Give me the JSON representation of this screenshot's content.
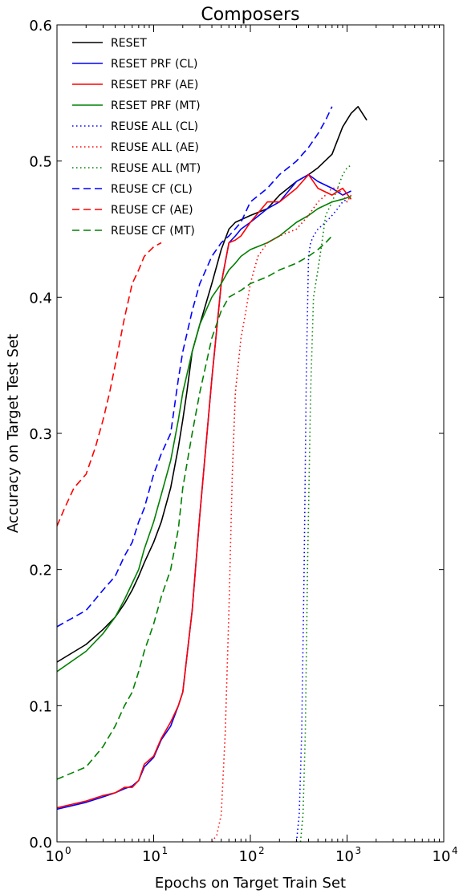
{
  "chart_data": {
    "type": "line",
    "title": "Composers",
    "xlabel": "Epochs on Target Train Set",
    "ylabel": "Accuracy on Target Test Set",
    "x_scale": "log",
    "xlim": [
      1,
      10000
    ],
    "ylim": [
      0.0,
      0.6
    ],
    "grid": false,
    "legend_position": "top-left",
    "x_ticks": [
      {
        "value": 1,
        "label": "10",
        "exp": "0"
      },
      {
        "value": 10,
        "label": "10",
        "exp": "1"
      },
      {
        "value": 100,
        "label": "10",
        "exp": "2"
      },
      {
        "value": 1000,
        "label": "10",
        "exp": "3"
      },
      {
        "value": 10000,
        "label": "10",
        "exp": "4"
      }
    ],
    "y_ticks": [
      {
        "value": 0.0,
        "label": "0.0"
      },
      {
        "value": 0.1,
        "label": "0.1"
      },
      {
        "value": 0.2,
        "label": "0.2"
      },
      {
        "value": 0.3,
        "label": "0.3"
      },
      {
        "value": 0.4,
        "label": "0.4"
      },
      {
        "value": 0.5,
        "label": "0.5"
      },
      {
        "value": 0.6,
        "label": "0.6"
      }
    ],
    "series": [
      {
        "name": "RESET",
        "color": "#000000",
        "style": "solid",
        "x": [
          1,
          2,
          3,
          4,
          5,
          6,
          7,
          8,
          10,
          12,
          15,
          18,
          20,
          22,
          25,
          30,
          40,
          50,
          60,
          70,
          100,
          150,
          200,
          300,
          400,
          500,
          700,
          900,
          1100,
          1300,
          1600
        ],
        "y": [
          0.132,
          0.145,
          0.156,
          0.165,
          0.175,
          0.185,
          0.195,
          0.205,
          0.22,
          0.235,
          0.26,
          0.29,
          0.31,
          0.33,
          0.36,
          0.38,
          0.41,
          0.435,
          0.45,
          0.455,
          0.46,
          0.465,
          0.475,
          0.485,
          0.49,
          0.495,
          0.505,
          0.525,
          0.535,
          0.54,
          0.53
        ]
      },
      {
        "name": "RESET PRF (CL)",
        "color": "#0000ff",
        "style": "solid",
        "x": [
          1,
          2,
          3,
          4,
          5,
          6,
          7,
          8,
          10,
          12,
          15,
          18,
          20,
          25,
          30,
          40,
          50,
          60,
          70,
          80,
          100,
          150,
          200,
          300,
          400,
          500,
          700,
          900,
          1100
        ],
        "y": [
          0.024,
          0.029,
          0.033,
          0.036,
          0.039,
          0.041,
          0.045,
          0.055,
          0.062,
          0.075,
          0.085,
          0.1,
          0.11,
          0.17,
          0.24,
          0.34,
          0.41,
          0.44,
          0.445,
          0.45,
          0.455,
          0.465,
          0.47,
          0.485,
          0.49,
          0.485,
          0.48,
          0.475,
          0.478
        ]
      },
      {
        "name": "RESET PRF (AE)",
        "color": "#ff0000",
        "style": "solid",
        "x": [
          1,
          2,
          3,
          4,
          5,
          6,
          7,
          8,
          10,
          12,
          15,
          18,
          20,
          25,
          30,
          40,
          50,
          60,
          70,
          80,
          100,
          150,
          200,
          300,
          400,
          500,
          700,
          900,
          1100
        ],
        "y": [
          0.025,
          0.03,
          0.034,
          0.036,
          0.04,
          0.04,
          0.045,
          0.057,
          0.063,
          0.076,
          0.088,
          0.1,
          0.11,
          0.17,
          0.24,
          0.34,
          0.41,
          0.44,
          0.442,
          0.445,
          0.455,
          0.47,
          0.47,
          0.48,
          0.49,
          0.48,
          0.475,
          0.48,
          0.472
        ]
      },
      {
        "name": "RESET PRF (MT)",
        "color": "#008000",
        "style": "solid",
        "x": [
          1,
          2,
          3,
          4,
          5,
          6,
          7,
          8,
          10,
          12,
          15,
          18,
          20,
          25,
          30,
          40,
          50,
          60,
          70,
          80,
          100,
          150,
          200,
          300,
          400,
          500,
          700,
          900,
          1100
        ],
        "y": [
          0.125,
          0.14,
          0.153,
          0.165,
          0.178,
          0.19,
          0.2,
          0.215,
          0.235,
          0.255,
          0.28,
          0.31,
          0.33,
          0.36,
          0.38,
          0.4,
          0.41,
          0.42,
          0.425,
          0.43,
          0.435,
          0.44,
          0.445,
          0.455,
          0.46,
          0.465,
          0.47,
          0.472,
          0.474
        ]
      },
      {
        "name": "REUSE ALL (CL)",
        "color": "#0000ff",
        "style": "dotted",
        "x": [
          300,
          320,
          340,
          360,
          380,
          400,
          420,
          450,
          500,
          600,
          700,
          800,
          900,
          1000
        ],
        "y": [
          0.0,
          0.02,
          0.08,
          0.2,
          0.35,
          0.43,
          0.44,
          0.445,
          0.45,
          0.455,
          0.46,
          0.465,
          0.47,
          0.472
        ]
      },
      {
        "name": "REUSE ALL (AE)",
        "color": "#ff0000",
        "style": "dotted",
        "x": [
          40,
          45,
          50,
          55,
          60,
          65,
          70,
          80,
          90,
          100,
          120,
          150,
          200,
          300,
          400,
          500,
          600,
          700,
          800,
          900,
          1000,
          1100
        ],
        "y": [
          0.0,
          0.005,
          0.02,
          0.08,
          0.17,
          0.27,
          0.33,
          0.37,
          0.39,
          0.41,
          0.43,
          0.44,
          0.445,
          0.45,
          0.46,
          0.47,
          0.475,
          0.48,
          0.48,
          0.475,
          0.47,
          0.475
        ]
      },
      {
        "name": "REUSE ALL (MT)",
        "color": "#008000",
        "style": "dotted",
        "x": [
          330,
          350,
          370,
          390,
          420,
          450,
          500,
          550,
          600,
          700,
          800,
          900,
          1000,
          1100
        ],
        "y": [
          0.0,
          0.02,
          0.08,
          0.2,
          0.33,
          0.4,
          0.42,
          0.44,
          0.46,
          0.47,
          0.48,
          0.49,
          0.495,
          0.497
        ]
      },
      {
        "name": "REUSE CF (CL)",
        "color": "#0000ff",
        "style": "dashed",
        "x": [
          1,
          2,
          3,
          4,
          5,
          6,
          7,
          8,
          10,
          12,
          15,
          18,
          20,
          25,
          30,
          40,
          50,
          60,
          80,
          100,
          150,
          200,
          300,
          400,
          500,
          600,
          700
        ],
        "y": [
          0.158,
          0.17,
          0.185,
          0.195,
          0.21,
          0.22,
          0.235,
          0.245,
          0.27,
          0.285,
          0.3,
          0.34,
          0.36,
          0.39,
          0.41,
          0.43,
          0.44,
          0.445,
          0.455,
          0.47,
          0.48,
          0.49,
          0.5,
          0.51,
          0.52,
          0.53,
          0.54
        ]
      },
      {
        "name": "REUSE CF (AE)",
        "color": "#ff0000",
        "style": "dashed",
        "x": [
          1,
          1.2,
          1.5,
          2,
          2.5,
          3,
          3.5,
          4,
          5,
          6,
          7,
          8,
          10,
          12
        ],
        "y": [
          0.232,
          0.245,
          0.26,
          0.27,
          0.29,
          0.31,
          0.33,
          0.35,
          0.385,
          0.41,
          0.42,
          0.43,
          0.437,
          0.44
        ]
      },
      {
        "name": "REUSE CF (MT)",
        "color": "#008000",
        "style": "dashed",
        "x": [
          1,
          2,
          3,
          4,
          5,
          6,
          7,
          8,
          10,
          12,
          15,
          18,
          20,
          25,
          30,
          40,
          50,
          60,
          80,
          100,
          150,
          200,
          300,
          400,
          500,
          600,
          700
        ],
        "y": [
          0.046,
          0.055,
          0.07,
          0.085,
          0.1,
          0.11,
          0.125,
          0.14,
          0.16,
          0.18,
          0.2,
          0.23,
          0.26,
          0.3,
          0.33,
          0.37,
          0.39,
          0.4,
          0.405,
          0.41,
          0.415,
          0.42,
          0.425,
          0.43,
          0.435,
          0.44,
          0.445
        ]
      }
    ]
  }
}
